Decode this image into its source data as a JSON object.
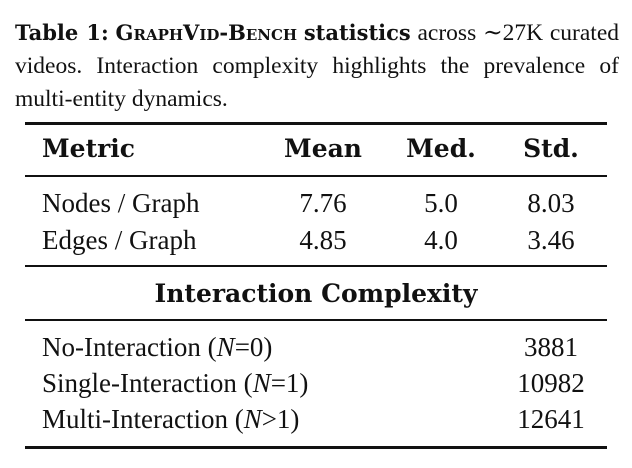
{
  "caption": {
    "label": "Table 1:",
    "name": "GraphVid-Bench",
    "emph": "statistics",
    "text": " across ∼27K curated videos. Interaction complexity highlights the prevalence of multi-entity dynamics."
  },
  "table": {
    "headers": {
      "metric": "Metric",
      "mean": "Mean",
      "median": "Med.",
      "std": "Std."
    },
    "rows": [
      {
        "metric": "Nodes / Graph",
        "mean": "7.76",
        "median": "5.0",
        "std": "8.03"
      },
      {
        "metric": "Edges / Graph",
        "mean": "4.85",
        "median": "4.0",
        "std": "3.46"
      }
    ],
    "section_title": "Interaction Complexity",
    "interaction_rows": [
      {
        "label": "No-Interaction (",
        "var": "N",
        "rel": "=0)",
        "value": "3881"
      },
      {
        "label": "Single-Interaction (",
        "var": "N",
        "rel": "=1)",
        "value": "10982"
      },
      {
        "label": "Multi-Interaction (",
        "var": "N",
        "rel": ">1)",
        "value": "12641"
      }
    ]
  }
}
